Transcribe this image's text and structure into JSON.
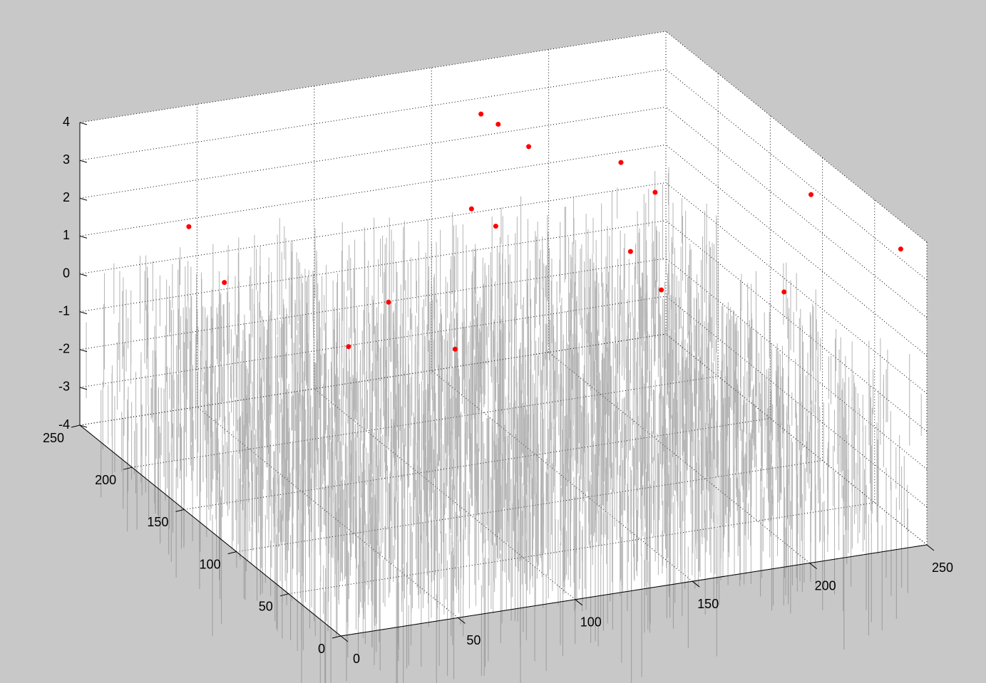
{
  "chart_data": {
    "type": "scatter3d",
    "x": [
      164,
      174,
      175,
      201,
      200,
      238,
      127,
      128,
      18,
      56,
      165,
      202,
      22,
      59,
      246,
      6,
      159
    ],
    "y": [
      234,
      240,
      213,
      183,
      148,
      84,
      160,
      139,
      186,
      80,
      93,
      29,
      42,
      23,
      16,
      125,
      50
    ],
    "z": [
      3,
      2.5,
      2.5,
      2.5,
      2.5,
      3.5,
      2.5,
      2.5,
      2.5,
      2.5,
      2.5,
      2.5,
      2.5,
      2.5,
      3.5,
      2.5,
      2.5
    ],
    "color": "#ff0000",
    "xlim": [
      0,
      250
    ],
    "ylim": [
      0,
      250
    ],
    "zlim": [
      -4,
      4
    ],
    "xticks": [
      0,
      50,
      100,
      150,
      200,
      250
    ],
    "yticks": [
      0,
      50,
      100,
      150,
      200,
      250
    ],
    "zticks": [
      -4,
      -3,
      -2,
      -1,
      0,
      1,
      2,
      3,
      4
    ],
    "grid": true
  }
}
